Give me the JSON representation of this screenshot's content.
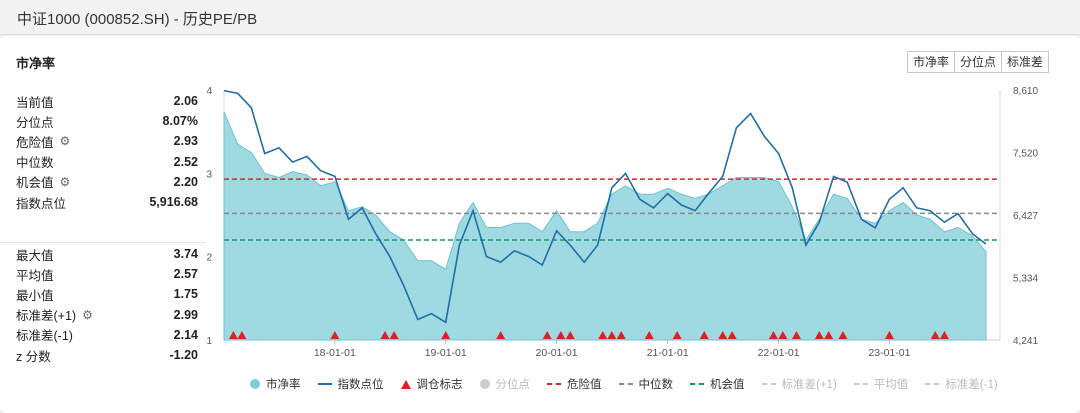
{
  "page_title": "中证1000 (000852.SH) - 历史PE/PB",
  "panel_title": "市净率",
  "tabs": [
    {
      "label": "市净率",
      "active": true
    },
    {
      "label": "分位点",
      "active": false
    },
    {
      "label": "标准差",
      "active": false
    }
  ],
  "stats_top": [
    {
      "label": "当前值",
      "value": "2.06",
      "icon": ""
    },
    {
      "label": "分位点",
      "value": "8.07%",
      "icon": ""
    },
    {
      "label": "危险值",
      "value": "2.93",
      "icon": "gear-icon"
    },
    {
      "label": "中位数",
      "value": "2.52",
      "icon": ""
    },
    {
      "label": "机会值",
      "value": "2.20",
      "icon": "gear-icon"
    },
    {
      "label": "指数点位",
      "value": "5,916.68",
      "icon": ""
    }
  ],
  "stats_bottom": [
    {
      "label": "最大值",
      "value": "3.74",
      "icon": ""
    },
    {
      "label": "平均值",
      "value": "2.57",
      "icon": ""
    },
    {
      "label": "最小值",
      "value": "1.75",
      "icon": ""
    },
    {
      "label": "标准差(+1)",
      "value": "2.99",
      "icon": "gear-icon"
    },
    {
      "label": "标准差(-1)",
      "value": "2.14",
      "icon": ""
    },
    {
      "label": "z 分数",
      "value": "-1.20",
      "icon": ""
    }
  ],
  "legend": [
    {
      "label": "市净率",
      "kind": "dot",
      "color": "#7ecfdb",
      "on": true
    },
    {
      "label": "指数点位",
      "kind": "line",
      "color": "#1f6fa8",
      "on": true
    },
    {
      "label": "调仓标志",
      "kind": "tri",
      "color": "#e02020",
      "on": true
    },
    {
      "label": "分位点",
      "kind": "dot",
      "color": "#cccccc",
      "on": false
    },
    {
      "label": "危险值",
      "kind": "dash",
      "color": "#d62828",
      "on": true
    },
    {
      "label": "中位数",
      "kind": "dash",
      "color": "#888888",
      "on": true
    },
    {
      "label": "机会值",
      "kind": "dash",
      "color": "#1a9a6a",
      "on": true
    },
    {
      "label": "标准差(+1)",
      "kind": "dash",
      "color": "#cccccc",
      "on": false
    },
    {
      "label": "平均值",
      "kind": "dash",
      "color": "#cccccc",
      "on": false
    },
    {
      "label": "标准差(-1)",
      "kind": "dash",
      "color": "#cccccc",
      "on": false
    }
  ],
  "colors": {
    "accent": "#1ea7d3",
    "area_fill": "#9fd9e1",
    "area_stroke": "#6fc3d1",
    "index_line": "#1f6fa8",
    "danger": "#d62828",
    "median": "#888888",
    "opportunity": "#1a9a6a",
    "marker": "#e02020"
  },
  "chart_data": {
    "type": "area",
    "x_ticks": [
      "18-01-01",
      "19-01-01",
      "20-01-01",
      "21-01-01",
      "22-01-01",
      "23-01-01"
    ],
    "x_range": [
      "2017-01-01",
      "2023-12-31"
    ],
    "left_axis": {
      "ticks": [
        "1",
        "2",
        "3",
        "4"
      ],
      "ylim": [
        1,
        4
      ]
    },
    "right_axis": {
      "ticks": [
        "4,241",
        "5,334",
        "6,427",
        "7,520",
        "8,610"
      ],
      "ylim": [
        4241,
        8610
      ]
    },
    "reference_lines": {
      "danger": 2.93,
      "median": 2.52,
      "opportunity": 2.2
    },
    "series": [
      {
        "name": "市净率",
        "axis": "left",
        "x": [
          "2017-01-01",
          "2017-02-15",
          "2017-04-01",
          "2017-05-15",
          "2017-07-01",
          "2017-08-15",
          "2017-10-01",
          "2017-11-15",
          "2018-01-01",
          "2018-02-15",
          "2018-04-01",
          "2018-05-15",
          "2018-07-01",
          "2018-08-15",
          "2018-10-01",
          "2018-11-15",
          "2019-01-01",
          "2019-02-15",
          "2019-04-01",
          "2019-05-15",
          "2019-07-01",
          "2019-08-15",
          "2019-10-01",
          "2019-11-15",
          "2020-01-01",
          "2020-02-15",
          "2020-04-01",
          "2020-05-15",
          "2020-07-01",
          "2020-08-15",
          "2020-10-01",
          "2020-11-15",
          "2021-01-01",
          "2021-02-15",
          "2021-04-01",
          "2021-05-15",
          "2021-07-01",
          "2021-08-15",
          "2021-10-01",
          "2021-11-15",
          "2022-01-01",
          "2022-02-15",
          "2022-04-01",
          "2022-05-15",
          "2022-07-01",
          "2022-08-15",
          "2022-10-01",
          "2022-11-15",
          "2023-01-01",
          "2023-02-15",
          "2023-04-01",
          "2023-05-15",
          "2023-07-01",
          "2023-08-15",
          "2023-10-01",
          "2023-11-15"
        ],
        "values": [
          3.74,
          3.35,
          3.25,
          3.0,
          2.95,
          3.02,
          2.98,
          2.85,
          2.9,
          2.55,
          2.6,
          2.5,
          2.3,
          2.2,
          1.95,
          1.95,
          1.85,
          2.4,
          2.65,
          2.35,
          2.35,
          2.4,
          2.4,
          2.3,
          2.55,
          2.3,
          2.3,
          2.4,
          2.75,
          2.85,
          2.75,
          2.75,
          2.82,
          2.75,
          2.7,
          2.75,
          2.85,
          2.95,
          2.95,
          2.95,
          2.9,
          2.6,
          2.2,
          2.45,
          2.75,
          2.7,
          2.45,
          2.4,
          2.55,
          2.65,
          2.5,
          2.45,
          2.3,
          2.35,
          2.25,
          2.06
        ]
      },
      {
        "name": "指数点位",
        "axis": "right",
        "x": [
          "2017-01-01",
          "2017-02-15",
          "2017-04-01",
          "2017-05-15",
          "2017-07-01",
          "2017-08-15",
          "2017-10-01",
          "2017-11-15",
          "2018-01-01",
          "2018-02-15",
          "2018-04-01",
          "2018-05-15",
          "2018-07-01",
          "2018-08-15",
          "2018-10-01",
          "2018-11-15",
          "2019-01-01",
          "2019-02-15",
          "2019-04-01",
          "2019-05-15",
          "2019-07-01",
          "2019-08-15",
          "2019-10-01",
          "2019-11-15",
          "2020-01-01",
          "2020-02-15",
          "2020-04-01",
          "2020-05-15",
          "2020-07-01",
          "2020-08-15",
          "2020-10-01",
          "2020-11-15",
          "2021-01-01",
          "2021-02-15",
          "2021-04-01",
          "2021-05-15",
          "2021-07-01",
          "2021-08-15",
          "2021-10-01",
          "2021-11-15",
          "2022-01-01",
          "2022-02-15",
          "2022-04-01",
          "2022-05-15",
          "2022-07-01",
          "2022-08-15",
          "2022-10-01",
          "2022-11-15",
          "2023-01-01",
          "2023-02-15",
          "2023-04-01",
          "2023-05-15",
          "2023-07-01",
          "2023-08-15",
          "2023-10-01",
          "2023-11-15"
        ],
        "values": [
          8600,
          8550,
          8300,
          7500,
          7600,
          7350,
          7450,
          7200,
          7100,
          6350,
          6550,
          6100,
          5700,
          5200,
          4600,
          4700,
          4550,
          5900,
          6500,
          5700,
          5600,
          5800,
          5700,
          5550,
          6150,
          5900,
          5600,
          5900,
          6900,
          7150,
          6700,
          6550,
          6800,
          6600,
          6500,
          6800,
          7100,
          7950,
          8200,
          7800,
          7500,
          6900,
          5900,
          6300,
          7100,
          7000,
          6350,
          6200,
          6700,
          6900,
          6550,
          6500,
          6300,
          6450,
          6100,
          5917
        ]
      }
    ],
    "rebalance_markers": [
      "2017-02-01",
      "2017-03-01",
      "2018-01-01",
      "2018-06-15",
      "2018-07-15",
      "2019-01-01",
      "2019-07-01",
      "2019-12-01",
      "2020-01-15",
      "2020-02-15",
      "2020-06-01",
      "2020-07-01",
      "2020-08-01",
      "2020-11-01",
      "2021-02-01",
      "2021-05-01",
      "2021-07-01",
      "2021-08-01",
      "2021-12-15",
      "2022-01-15",
      "2022-03-01",
      "2022-05-15",
      "2022-06-15",
      "2022-08-01",
      "2023-01-01",
      "2023-06-01",
      "2023-07-01"
    ]
  }
}
